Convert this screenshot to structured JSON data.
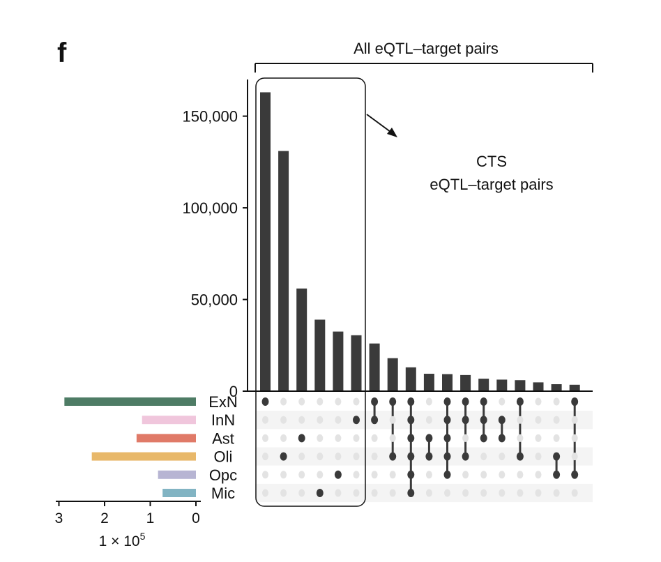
{
  "panel_letter": "f",
  "bracket_label": "All eQTL–target pairs",
  "annotation": {
    "line1": "CTS",
    "line2": "eQTL–target pairs"
  },
  "colors": {
    "bar": "#3a3a3a",
    "dot_on": "#3a3a3a",
    "dot_off": "#e3e3e3",
    "row_stripe": "#f4f4f4",
    "sets": {
      "ExN": "#4e7c65",
      "InN": "#f0c6dc",
      "Ast": "#e07a68",
      "Oli": "#e8b86a",
      "Opc": "#b7b5d3",
      "Mic": "#82b4c3"
    }
  },
  "chart_data": [
    {
      "type": "bar",
      "role": "intersection sizes",
      "ylim": [
        0,
        170000
      ],
      "yticks": [
        0,
        50000,
        100000,
        150000
      ],
      "ytick_labels": [
        "0",
        "50,000",
        "100,000",
        "150,000"
      ],
      "values": [
        163000,
        131000,
        56000,
        39000,
        32500,
        30500,
        26000,
        18000,
        13000,
        9500,
        9300,
        8800,
        6800,
        6300,
        6000,
        4800,
        3800,
        3500
      ],
      "highlighted_range": [
        0,
        5
      ],
      "set_order": [
        "ExN",
        "InN",
        "Ast",
        "Oli",
        "Opc",
        "Mic"
      ],
      "memberships": [
        [
          "ExN"
        ],
        [
          "Oli"
        ],
        [
          "Ast"
        ],
        [
          "Mic"
        ],
        [
          "Opc"
        ],
        [
          "InN"
        ],
        [
          "ExN",
          "InN"
        ],
        [
          "ExN",
          "Oli"
        ],
        [
          "ExN",
          "InN",
          "Ast",
          "Oli",
          "Opc",
          "Mic"
        ],
        [
          "Ast",
          "Oli"
        ],
        [
          "ExN",
          "InN",
          "Ast",
          "Oli",
          "Opc"
        ],
        [
          "ExN",
          "InN",
          "Oli"
        ],
        [
          "ExN",
          "InN",
          "Ast"
        ],
        [
          "InN",
          "Ast"
        ],
        [
          "ExN",
          "Oli"
        ],
        [],
        [
          "Oli",
          "Opc"
        ],
        [
          "ExN",
          "Opc"
        ]
      ]
    },
    {
      "type": "bar",
      "role": "set sizes",
      "orientation": "horizontal",
      "categories": [
        "ExN",
        "InN",
        "Ast",
        "Oli",
        "Opc",
        "Mic"
      ],
      "values": [
        288000,
        118000,
        130000,
        228000,
        83000,
        73000
      ],
      "xlim": [
        0,
        310000
      ],
      "xticks": [
        3,
        2,
        1,
        0
      ],
      "xtick_labels": [
        "3",
        "2",
        "1",
        "0"
      ],
      "xlabel": "1 × 10",
      "xlabel_exponent": "5",
      "xaxis_direction": "reversed"
    }
  ]
}
